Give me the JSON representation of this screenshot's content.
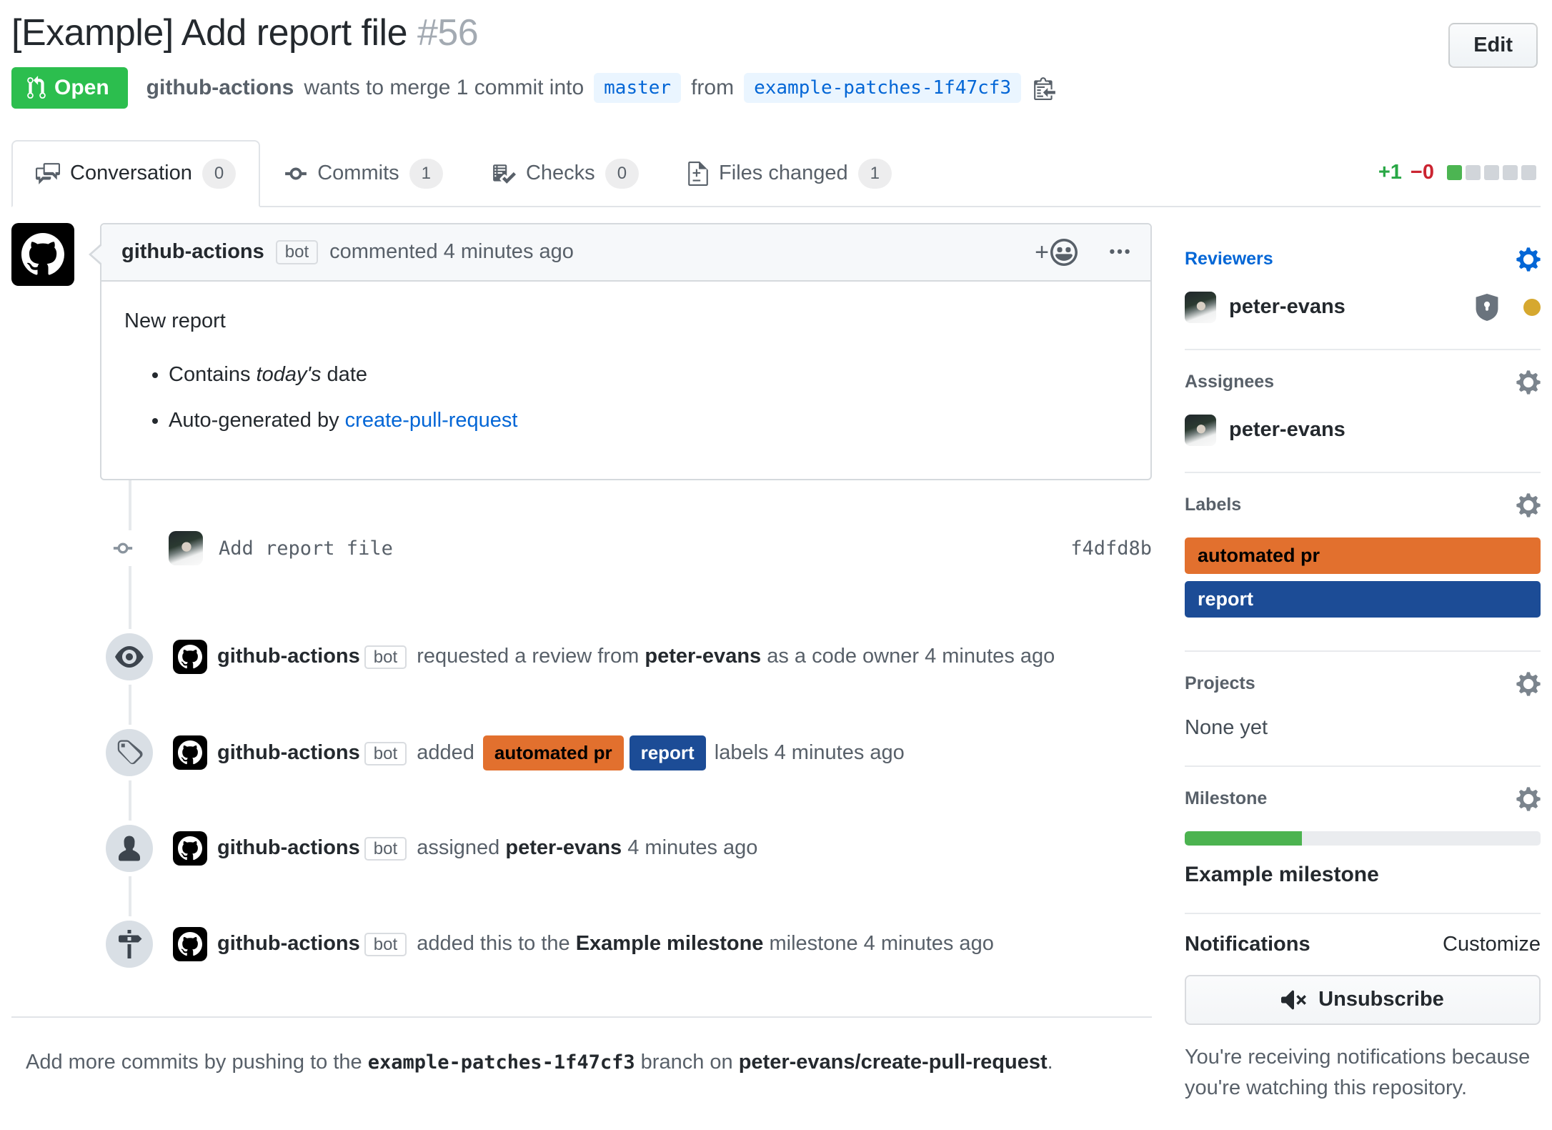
{
  "header": {
    "title": "[Example] Add report file",
    "number": "#56",
    "edit_button": "Edit"
  },
  "status_badge": {
    "label": "Open"
  },
  "merge_summary": {
    "author": "github-actions",
    "text_before_base": "wants to merge 1 commit into",
    "base_branch": "master",
    "text_between": "from",
    "head_branch": "example-patches-1f47cf3"
  },
  "tabs": [
    {
      "label": "Conversation",
      "count": "0"
    },
    {
      "label": "Commits",
      "count": "1"
    },
    {
      "label": "Checks",
      "count": "0"
    },
    {
      "label": "Files changed",
      "count": "1"
    }
  ],
  "diffstat": {
    "additions": "+1",
    "deletions": "−0",
    "blocks": [
      "#4cb552",
      "#d1d5da",
      "#d1d5da",
      "#d1d5da",
      "#d1d5da"
    ]
  },
  "comment": {
    "author": "github-actions",
    "bot_badge": "bot",
    "action": "commented 4 minutes ago",
    "body": {
      "intro": "New report",
      "bullet1_pre": "Contains ",
      "bullet1_italic": "today's",
      "bullet1_post": " date",
      "bullet2_pre": "Auto-generated by ",
      "bullet2_link": "create-pull-request"
    }
  },
  "commit": {
    "message": "Add report file",
    "sha": "f4dfd8b"
  },
  "events": [
    {
      "icon": "eye",
      "actor": "github-actions",
      "bot": "bot",
      "segments": [
        {
          "text": "requested a review from "
        },
        {
          "text": "peter-evans",
          "bold": true
        },
        {
          "text": " as a code owner 4 minutes ago"
        }
      ]
    },
    {
      "icon": "tag",
      "actor": "github-actions",
      "bot": "bot",
      "segments": [
        {
          "text": "added "
        },
        {
          "label": "automated pr",
          "bg": "#e2702e",
          "fg": "#000000"
        },
        {
          "label": "report",
          "bg": "#1c4c96",
          "fg": "#ffffff"
        },
        {
          "text": " labels 4 minutes ago"
        }
      ]
    },
    {
      "icon": "person",
      "actor": "github-actions",
      "bot": "bot",
      "segments": [
        {
          "text": "assigned "
        },
        {
          "text": "peter-evans",
          "bold": true
        },
        {
          "text": " 4 minutes ago"
        }
      ]
    },
    {
      "icon": "milestone",
      "actor": "github-actions",
      "bot": "bot",
      "segments": [
        {
          "text": "added this to the "
        },
        {
          "text": "Example milestone",
          "bold": true
        },
        {
          "text": " milestone 4 minutes ago"
        }
      ]
    }
  ],
  "sidebar": {
    "reviewers": {
      "heading": "Reviewers",
      "user": "peter-evans"
    },
    "assignees": {
      "heading": "Assignees",
      "user": "peter-evans"
    },
    "labels": {
      "heading": "Labels",
      "items": [
        {
          "text": "automated pr",
          "bg": "#e2702e",
          "fg": "#000000"
        },
        {
          "text": "report",
          "bg": "#1c4c96",
          "fg": "#ffffff"
        }
      ]
    },
    "projects": {
      "heading": "Projects",
      "empty": "None yet"
    },
    "milestone": {
      "heading": "Milestone",
      "name": "Example milestone",
      "progress_pct": 33
    },
    "notifications": {
      "heading": "Notifications",
      "customize": "Customize",
      "button": "Unsubscribe",
      "note": "You're receiving notifications because you're watching this repository."
    }
  },
  "footer": {
    "pre": "Add more commits by pushing to the ",
    "branch": "example-patches-1f47cf3",
    "mid": " branch on ",
    "repo": "peter-evans/create-pull-request",
    "post": "."
  },
  "colors": {
    "open_green": "#2cbe4e",
    "link_blue": "#0366d6",
    "added_green": "#28a745",
    "deleted_red": "#cb2431",
    "pending_review_dot": "#d6a82f",
    "milestone_progress_green": "#4cb350"
  }
}
